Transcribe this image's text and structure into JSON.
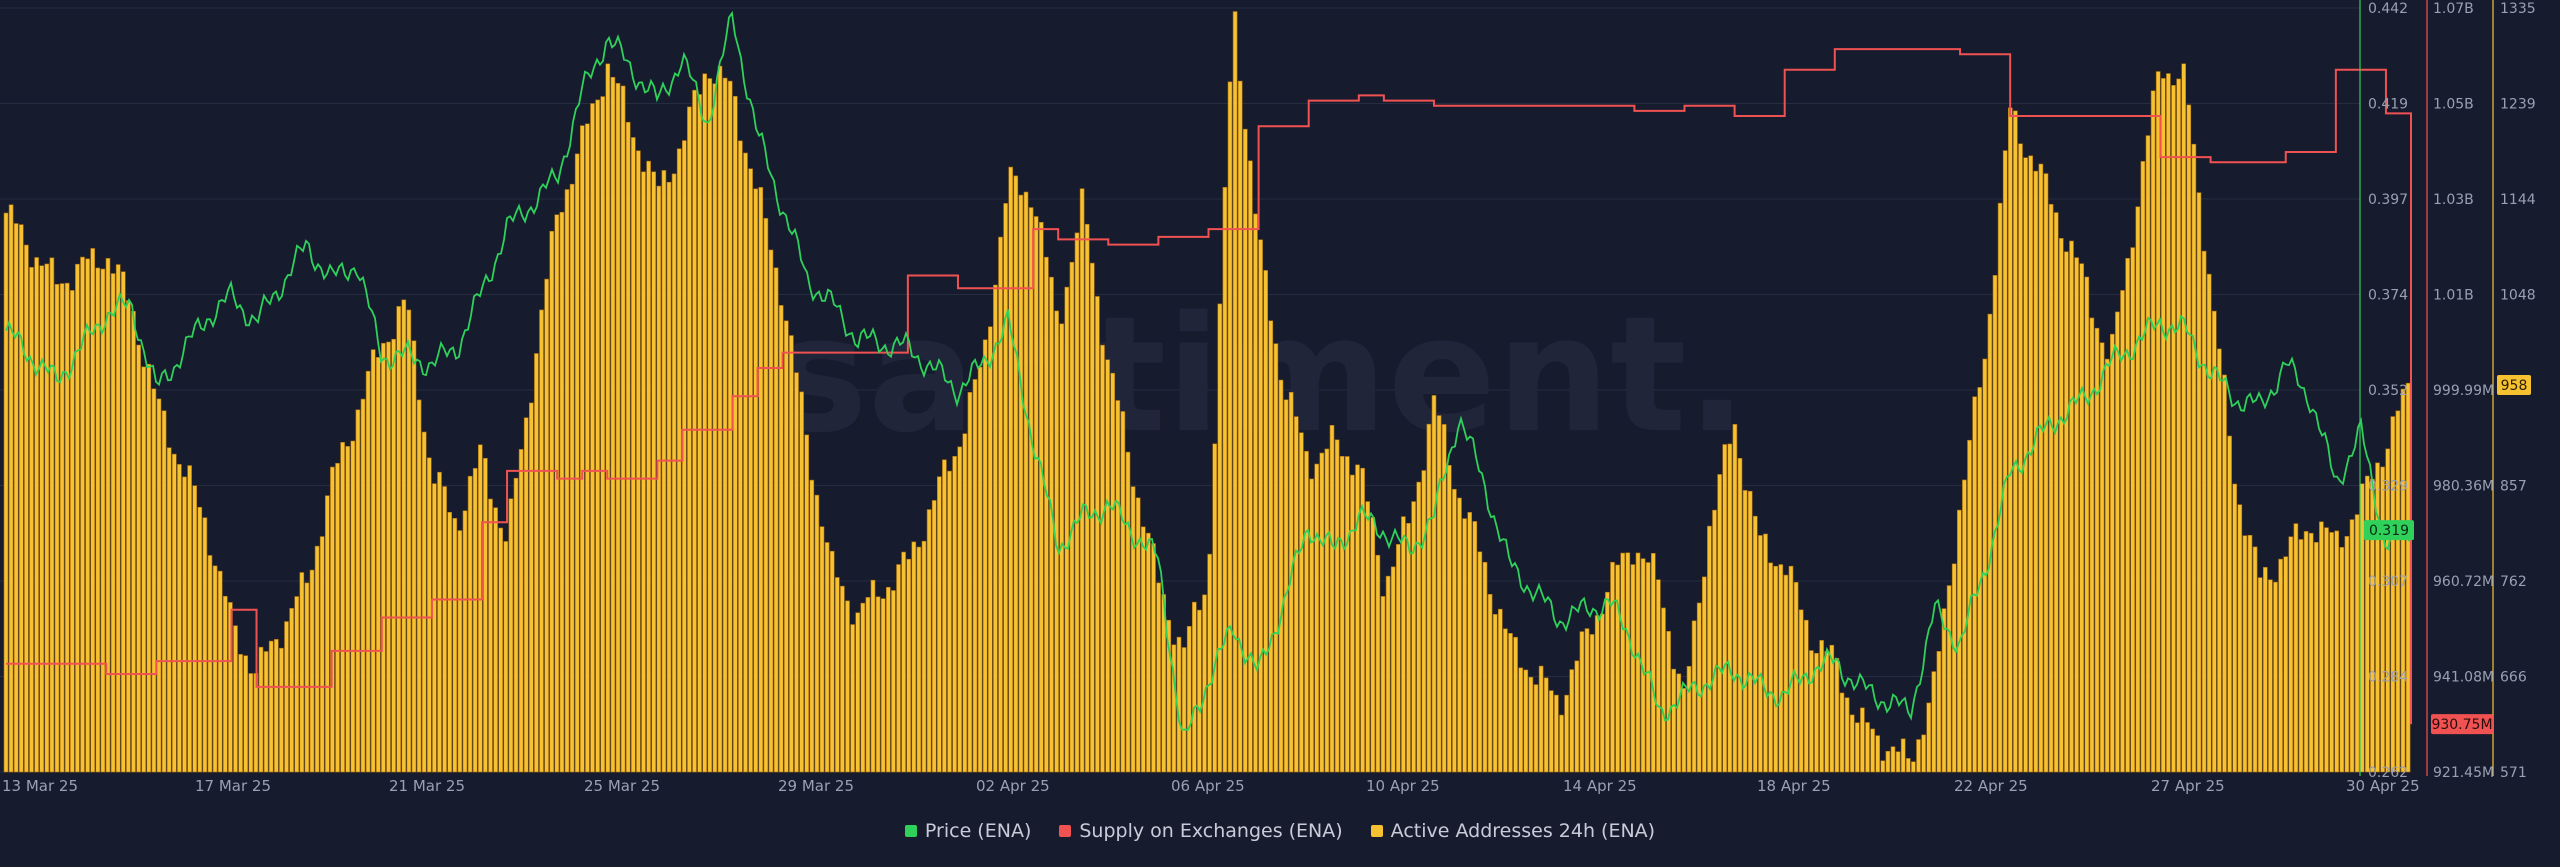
{
  "colors": {
    "background": "#171b2e",
    "grid": "#262c42",
    "price": "#2fd15b",
    "supply": "#f05252",
    "active": "#f6c231",
    "active_edge": "#a86f10",
    "axis_text": "#9aa0b4",
    "watermark": "#20253a"
  },
  "watermark": "santiment.",
  "legend": {
    "position": "bottom-center",
    "items": [
      {
        "label": "Price (ENA)",
        "color": "#2fd15b"
      },
      {
        "label": "Supply on Exchanges (ENA)",
        "color": "#f05252"
      },
      {
        "label": "Active Addresses 24h (ENA)",
        "color": "#f6c231"
      }
    ]
  },
  "chart_data": {
    "type": "bar",
    "x_range": [
      "2025-03-13",
      "2025-04-30"
    ],
    "x_tick_labels": [
      "13 Mar 25",
      "17 Mar 25",
      "21 Mar 25",
      "25 Mar 25",
      "29 Mar 25",
      "02 Apr 25",
      "06 Apr 25",
      "10 Apr 25",
      "14 Apr 25",
      "18 Apr 25",
      "22 Apr 25",
      "27 Apr 25",
      "30 Apr 25"
    ],
    "grid": true,
    "axes": {
      "price": {
        "ticks": [
          "0.442",
          "0.419",
          "0.397",
          "0.374",
          "0.352",
          "0.329",
          "0.307",
          "0.284",
          "0.262"
        ],
        "range": [
          0.262,
          0.442
        ],
        "current_label": "0.319",
        "current": 0.319
      },
      "supply": {
        "ticks": [
          "1.07B",
          "1.05B",
          "1.03B",
          "1.01B",
          "999.99M",
          "980.36M",
          "960.72M",
          "941.08M",
          "921.45M"
        ],
        "range": [
          921.45,
          1070
        ],
        "unit": "M",
        "current_label": "930.75M",
        "current": 930.75
      },
      "active": {
        "ticks": [
          "1335",
          "1239",
          "1144",
          "1048",
          "958",
          "857",
          "762",
          "666",
          "571"
        ],
        "range": [
          571,
          1335
        ],
        "current_label": "958",
        "current": 958
      }
    },
    "series": [
      {
        "name": "Active Addresses 24h (ENA)",
        "type": "bar",
        "axis": "active",
        "x": [
          "2025-03-13",
          "2025-03-14",
          "2025-03-15",
          "2025-03-15T12:00",
          "2025-03-16",
          "2025-03-17",
          "2025-03-17T12:00",
          "2025-03-18",
          "2025-03-19",
          "2025-03-19T12:00",
          "2025-03-20",
          "2025-03-20T12:00",
          "2025-03-21",
          "2025-03-21T12:00",
          "2025-03-22",
          "2025-03-22T12:00",
          "2025-03-23",
          "2025-03-24",
          "2025-03-24T12:00",
          "2025-03-25",
          "2025-03-26",
          "2025-03-26T12:00",
          "2025-03-27",
          "2025-03-27T12:00",
          "2025-03-28",
          "2025-03-28T12:00",
          "2025-03-29",
          "2025-03-29T12:00",
          "2025-03-30",
          "2025-03-31",
          "2025-04-01",
          "2025-04-01T12:00",
          "2025-04-02",
          "2025-04-02T12:00",
          "2025-04-03",
          "2025-04-03T12:00",
          "2025-04-04",
          "2025-04-05",
          "2025-04-05T12:00",
          "2025-04-06",
          "2025-04-06T12:00",
          "2025-04-07",
          "2025-04-07T12:00",
          "2025-04-08",
          "2025-04-08T12:00",
          "2025-04-09",
          "2025-04-09T12:00",
          "2025-04-10",
          "2025-04-10T12:00",
          "2025-04-11",
          "2025-04-11T12:00",
          "2025-04-12",
          "2025-04-13",
          "2025-04-14",
          "2025-04-14T12:00",
          "2025-04-15",
          "2025-04-15T12:00",
          "2025-04-16",
          "2025-04-16T12:00",
          "2025-04-17",
          "2025-04-17T12:00",
          "2025-04-18",
          "2025-04-18T12:00",
          "2025-04-19",
          "2025-04-20",
          "2025-04-20T12:00",
          "2025-04-21",
          "2025-04-21T12:00",
          "2025-04-22",
          "2025-04-22T12:00",
          "2025-04-23",
          "2025-04-23T12:00",
          "2025-04-24",
          "2025-04-25",
          "2025-04-25T12:00",
          "2025-04-26",
          "2025-04-26T12:00",
          "2025-04-27",
          "2025-04-27T12:00",
          "2025-04-28",
          "2025-04-28T12:00",
          "2025-04-29",
          "2025-04-29T12:00",
          "2025-04-30"
        ],
        "values": [
          1130,
          1060,
          1090,
          1040,
          940,
          820,
          720,
          670,
          760,
          860,
          930,
          1000,
          1040,
          870,
          820,
          890,
          800,
          1130,
          1200,
          1280,
          1150,
          1200,
          1280,
          1250,
          1150,
          1050,
          900,
          770,
          730,
          780,
          900,
          980,
          1160,
          1150,
          1020,
          1140,
          980,
          760,
          690,
          770,
          1340,
          1100,
          960,
          880,
          900,
          880,
          760,
          820,
          940,
          850,
          780,
          700,
          640,
          760,
          800,
          760,
          640,
          820,
          920,
          800,
          780,
          710,
          680,
          620,
          580,
          660,
          840,
          990,
          1230,
          1180,
          1120,
          1060,
          980,
          1280,
          1260,
          1060,
          860,
          760,
          790,
          820,
          800,
          840,
          900,
          960
        ]
      },
      {
        "name": "Price (ENA)",
        "type": "line",
        "axis": "price",
        "x": [
          "2025-03-13",
          "2025-03-14",
          "2025-03-15",
          "2025-03-15T12:00",
          "2025-03-16",
          "2025-03-17",
          "2025-03-17T12:00",
          "2025-03-18",
          "2025-03-19",
          "2025-03-19T12:00",
          "2025-03-20",
          "2025-03-20T12:00",
          "2025-03-21",
          "2025-03-21T12:00",
          "2025-03-22",
          "2025-03-22T12:00",
          "2025-03-23",
          "2025-03-24",
          "2025-03-24T12:00",
          "2025-03-25",
          "2025-03-26",
          "2025-03-26T12:00",
          "2025-03-27",
          "2025-03-27T12:00",
          "2025-03-28",
          "2025-03-28T12:00",
          "2025-03-29",
          "2025-03-29T12:00",
          "2025-03-30",
          "2025-03-31",
          "2025-04-01",
          "2025-04-01T12:00",
          "2025-04-02",
          "2025-04-02T12:00",
          "2025-04-03",
          "2025-04-03T12:00",
          "2025-04-04",
          "2025-04-05",
          "2025-04-05T12:00",
          "2025-04-06",
          "2025-04-06T12:00",
          "2025-04-07",
          "2025-04-07T12:00",
          "2025-04-08",
          "2025-04-08T12:00",
          "2025-04-09",
          "2025-04-09T12:00",
          "2025-04-10",
          "2025-04-10T12:00",
          "2025-04-11",
          "2025-04-11T12:00",
          "2025-04-12",
          "2025-04-13",
          "2025-04-14",
          "2025-04-14T12:00",
          "2025-04-15",
          "2025-04-15T12:00",
          "2025-04-16",
          "2025-04-16T12:00",
          "2025-04-17",
          "2025-04-17T12:00",
          "2025-04-18",
          "2025-04-18T12:00",
          "2025-04-19",
          "2025-04-20",
          "2025-04-20T12:00",
          "2025-04-21",
          "2025-04-21T12:00",
          "2025-04-22",
          "2025-04-22T12:00",
          "2025-04-23",
          "2025-04-23T12:00",
          "2025-04-24",
          "2025-04-25",
          "2025-04-25T12:00",
          "2025-04-26",
          "2025-04-26T12:00",
          "2025-04-27",
          "2025-04-27T12:00",
          "2025-04-28",
          "2025-04-28T12:00",
          "2025-04-29",
          "2025-04-29T12:00",
          "2025-04-30"
        ],
        "values": [
          0.366,
          0.354,
          0.37,
          0.372,
          0.352,
          0.369,
          0.374,
          0.368,
          0.386,
          0.378,
          0.382,
          0.36,
          0.36,
          0.358,
          0.362,
          0.375,
          0.39,
          0.402,
          0.422,
          0.435,
          0.42,
          0.43,
          0.415,
          0.44,
          0.412,
          0.395,
          0.378,
          0.372,
          0.364,
          0.362,
          0.352,
          0.358,
          0.368,
          0.34,
          0.315,
          0.322,
          0.325,
          0.312,
          0.268,
          0.284,
          0.296,
          0.285,
          0.302,
          0.32,
          0.314,
          0.322,
          0.319,
          0.314,
          0.322,
          0.346,
          0.33,
          0.311,
          0.298,
          0.302,
          0.292,
          0.276,
          0.28,
          0.284,
          0.286,
          0.282,
          0.28,
          0.286,
          0.288,
          0.282,
          0.276,
          0.3,
          0.292,
          0.31,
          0.332,
          0.34,
          0.346,
          0.35,
          0.358,
          0.368,
          0.366,
          0.356,
          0.35,
          0.348,
          0.358,
          0.35,
          0.33,
          0.342,
          0.316,
          0.319
        ]
      },
      {
        "name": "Supply on Exchanges (ENA)",
        "type": "step",
        "axis": "supply",
        "unit": "M",
        "x": [
          "2025-03-13",
          "2025-03-14",
          "2025-03-15",
          "2025-03-15T12:00",
          "2025-03-16",
          "2025-03-17",
          "2025-03-17T12:00",
          "2025-03-18",
          "2025-03-19",
          "2025-03-19T12:00",
          "2025-03-20",
          "2025-03-20T12:00",
          "2025-03-21",
          "2025-03-21T12:00",
          "2025-03-22",
          "2025-03-22T12:00",
          "2025-03-23",
          "2025-03-24",
          "2025-03-24T12:00",
          "2025-03-25",
          "2025-03-26",
          "2025-03-26T12:00",
          "2025-03-27",
          "2025-03-27T12:00",
          "2025-03-28",
          "2025-03-28T12:00",
          "2025-03-29",
          "2025-03-29T12:00",
          "2025-03-30",
          "2025-03-31",
          "2025-04-01",
          "2025-04-01T12:00",
          "2025-04-02",
          "2025-04-02T12:00",
          "2025-04-03",
          "2025-04-03T12:00",
          "2025-04-04",
          "2025-04-05",
          "2025-04-05T12:00",
          "2025-04-06",
          "2025-04-06T12:00",
          "2025-04-07",
          "2025-04-07T12:00",
          "2025-04-08",
          "2025-04-08T12:00",
          "2025-04-09",
          "2025-04-09T12:00",
          "2025-04-10",
          "2025-04-10T12:00",
          "2025-04-11",
          "2025-04-11T12:00",
          "2025-04-12",
          "2025-04-13",
          "2025-04-14",
          "2025-04-14T12:00",
          "2025-04-15",
          "2025-04-15T12:00",
          "2025-04-16",
          "2025-04-16T12:00",
          "2025-04-17",
          "2025-04-17T12:00",
          "2025-04-18",
          "2025-04-18T12:00",
          "2025-04-19",
          "2025-04-20",
          "2025-04-20T12:00",
          "2025-04-21",
          "2025-04-21T12:00",
          "2025-04-22",
          "2025-04-22T12:00",
          "2025-04-23",
          "2025-04-23T12:00",
          "2025-04-24",
          "2025-04-25",
          "2025-04-25T12:00",
          "2025-04-26",
          "2025-04-26T12:00",
          "2025-04-27",
          "2025-04-27T12:00",
          "2025-04-28",
          "2025-04-28T12:00",
          "2025-04-29",
          "2025-04-29T12:00",
          "2025-04-30"
        ],
        "values": [
          942.5,
          942.5,
          940.5,
          940.5,
          943,
          943,
          953,
          938,
          938,
          945,
          945,
          951.5,
          951.5,
          955,
          955,
          970,
          980,
          978.5,
          980,
          978.5,
          982,
          988,
          988,
          994.5,
          1000,
          1003,
          1003,
          1003,
          1003,
          1018,
          1015.5,
          1015.5,
          1015.5,
          1027,
          1025,
          1025,
          1024,
          1025.5,
          1025.5,
          1027,
          1027,
          1047,
          1047,
          1052,
          1052,
          1053,
          1052,
          1052,
          1051,
          1051,
          1051,
          1051,
          1051,
          1051,
          1050,
          1050,
          1051,
          1051,
          1049,
          1049,
          1058,
          1058,
          1062,
          1062,
          1062,
          1062,
          1061,
          1061,
          1049,
          1049,
          1049,
          1049,
          1049,
          1041,
          1041,
          1040,
          1040,
          1040,
          1042,
          1042,
          1058,
          1058,
          1049.5,
          930.75
        ]
      }
    ]
  }
}
